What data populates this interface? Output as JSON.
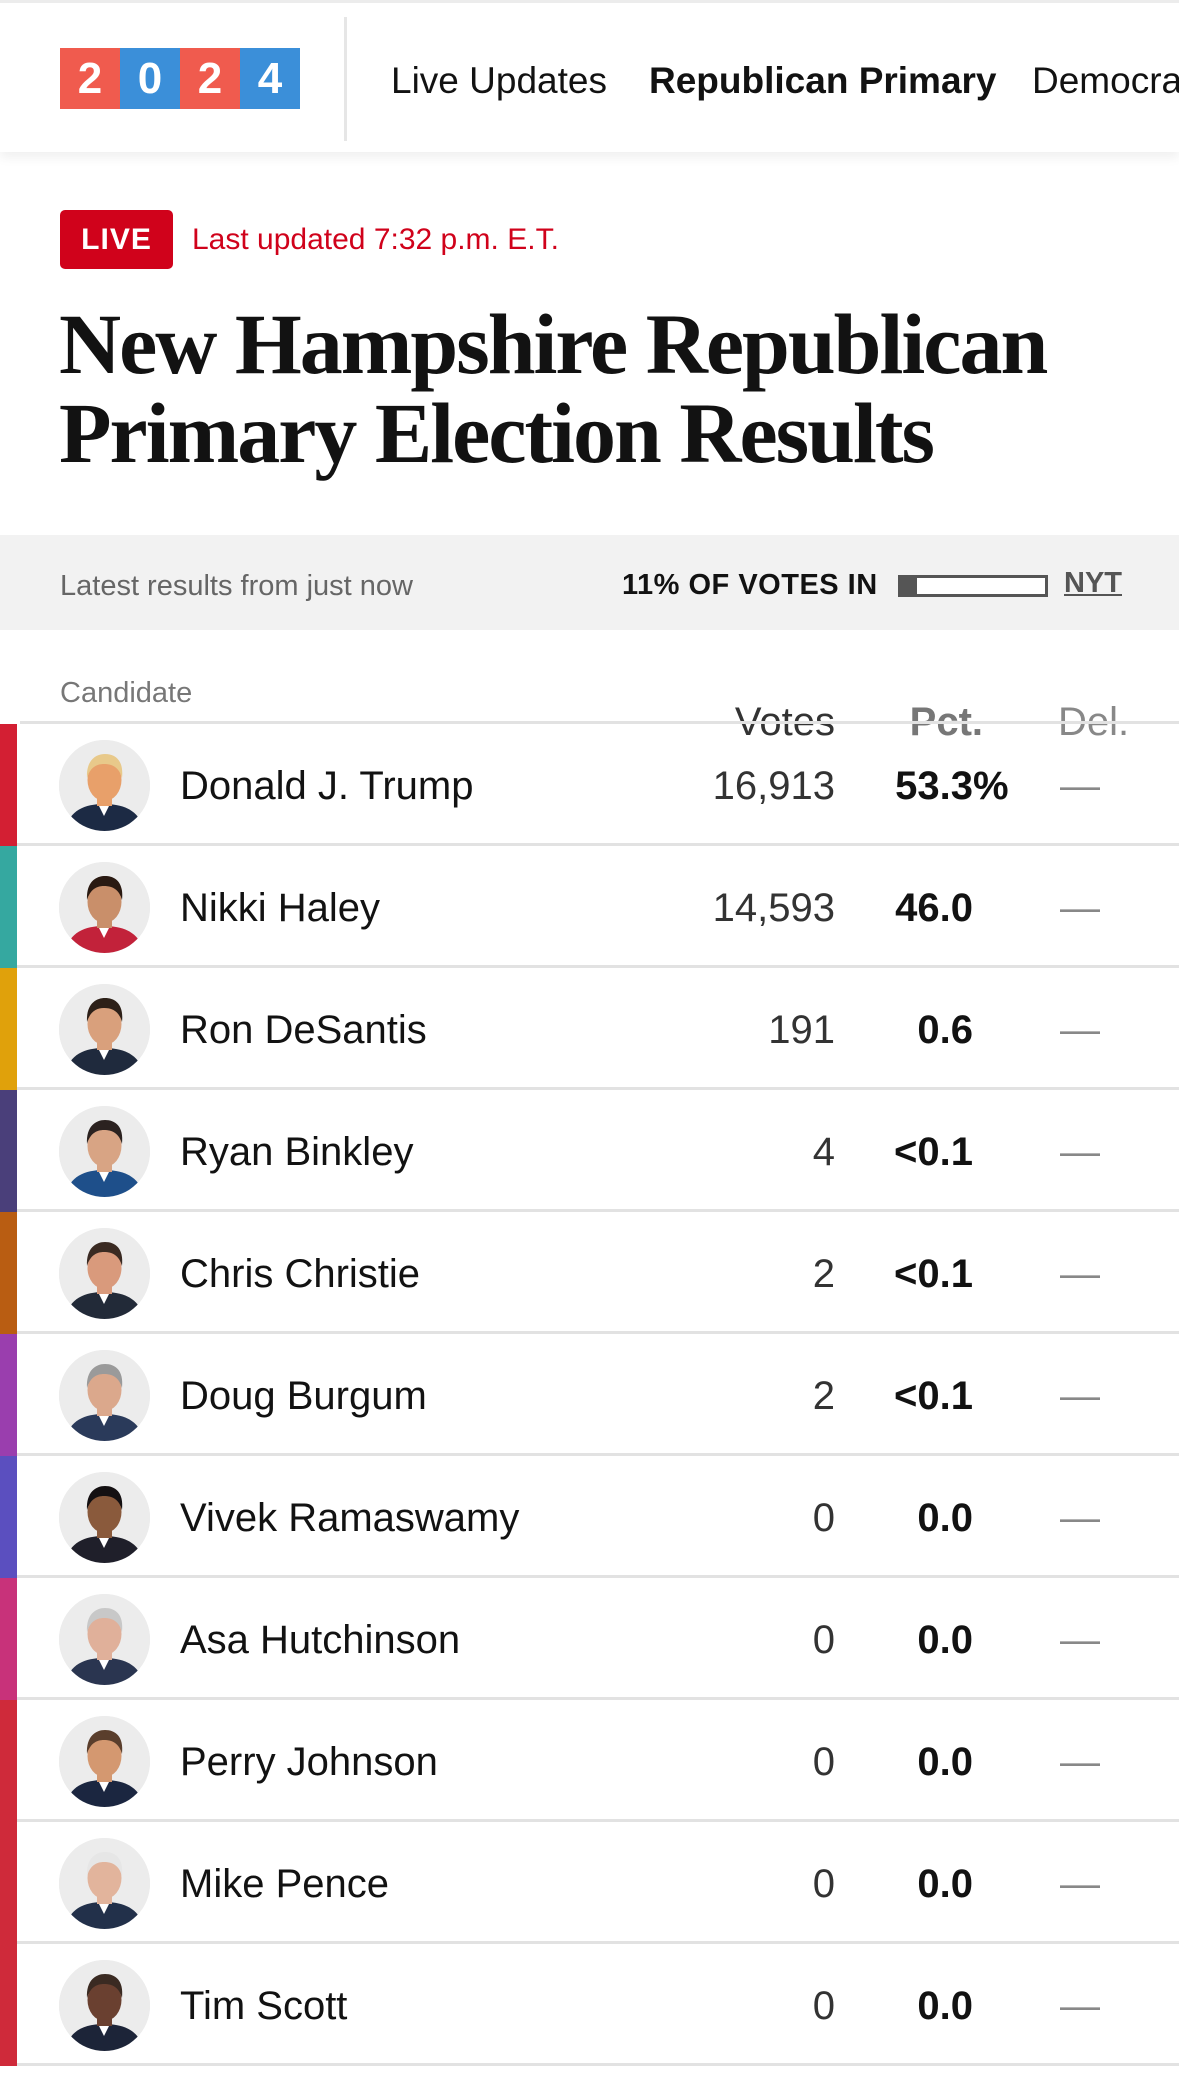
{
  "logo": {
    "digits": [
      "2",
      "0",
      "2",
      "4"
    ],
    "colors": [
      "#f05b4e",
      "#3b8fd9",
      "#f05b4e",
      "#3b8fd9"
    ]
  },
  "nav": {
    "items": [
      "Live Updates",
      "Republican Primary",
      "Democra"
    ]
  },
  "header": {
    "live_label": "LIVE",
    "updated": "Last updated 7:32 p.m. E.T.",
    "title": "New Hampshire Republican Primary Election Results"
  },
  "status": {
    "latest": "Latest results from just now",
    "votes_in": "11% OF VOTES IN",
    "votes_in_fraction": 0.11,
    "source_link": "NYT"
  },
  "table": {
    "headers": {
      "candidate": "Candidate",
      "votes": "Votes",
      "pct": "Pct.",
      "del": "Del."
    },
    "rows": [
      {
        "name": "Donald J. Trump",
        "votes": "16,913",
        "pct": "53.3",
        "pct_suffix": "%",
        "del": "—",
        "color": "#d31f33",
        "skin": "#e8a06a",
        "hair": "#e8c98a",
        "shirt": "#1c2a44"
      },
      {
        "name": "Nikki Haley",
        "votes": "14,593",
        "pct": "46.0",
        "pct_suffix": "",
        "del": "—",
        "color": "#35a8a0",
        "skin": "#c98f6a",
        "hair": "#2a1a12",
        "shirt": "#c2223a"
      },
      {
        "name": "Ron DeSantis",
        "votes": "191",
        "pct": "0.6",
        "pct_suffix": "",
        "del": "—",
        "color": "#e0a10b",
        "skin": "#d9a07c",
        "hair": "#2d2018",
        "shirt": "#1f2a3d"
      },
      {
        "name": "Ryan Binkley",
        "votes": "4",
        "pct": "<0.1",
        "pct_suffix": "",
        "del": "—",
        "color": "#4a3f7a",
        "skin": "#d8a484",
        "hair": "#2b2220",
        "shirt": "#1e4f8a"
      },
      {
        "name": "Chris Christie",
        "votes": "2",
        "pct": "<0.1",
        "pct_suffix": "",
        "del": "—",
        "color": "#b95d12",
        "skin": "#d99a7c",
        "hair": "#3a2a22",
        "shirt": "#222a38"
      },
      {
        "name": "Doug Burgum",
        "votes": "2",
        "pct": "<0.1",
        "pct_suffix": "",
        "del": "—",
        "color": "#9a3eae",
        "skin": "#dba88c",
        "hair": "#9a9a9a",
        "shirt": "#2a3a5a"
      },
      {
        "name": "Vivek Ramaswamy",
        "votes": "0",
        "pct": "0.0",
        "pct_suffix": "",
        "del": "—",
        "color": "#5b4fbf",
        "skin": "#8a5a3c",
        "hair": "#141012",
        "shirt": "#1f1f2a"
      },
      {
        "name": "Asa Hutchinson",
        "votes": "0",
        "pct": "0.0",
        "pct_suffix": "",
        "del": "—",
        "color": "#c8327a",
        "skin": "#e0b09a",
        "hair": "#c8c8c8",
        "shirt": "#2a3550"
      },
      {
        "name": "Perry Johnson",
        "votes": "0",
        "pct": "0.0",
        "pct_suffix": "",
        "del": "—",
        "color": "#cf2a3a",
        "skin": "#d49870",
        "hair": "#5a3e2c",
        "shirt": "#1b2640"
      },
      {
        "name": "Mike Pence",
        "votes": "0",
        "pct": "0.0",
        "pct_suffix": "",
        "del": "—",
        "color": "#cf2a3a",
        "skin": "#e2b49c",
        "hair": "#e6e6e6",
        "shirt": "#22304a"
      },
      {
        "name": "Tim Scott",
        "votes": "0",
        "pct": "0.0",
        "pct_suffix": "",
        "del": "—",
        "color": "#cf2a3a",
        "skin": "#6a4030",
        "hair": "#3a2a22",
        "shirt": "#1c2438"
      }
    ]
  }
}
